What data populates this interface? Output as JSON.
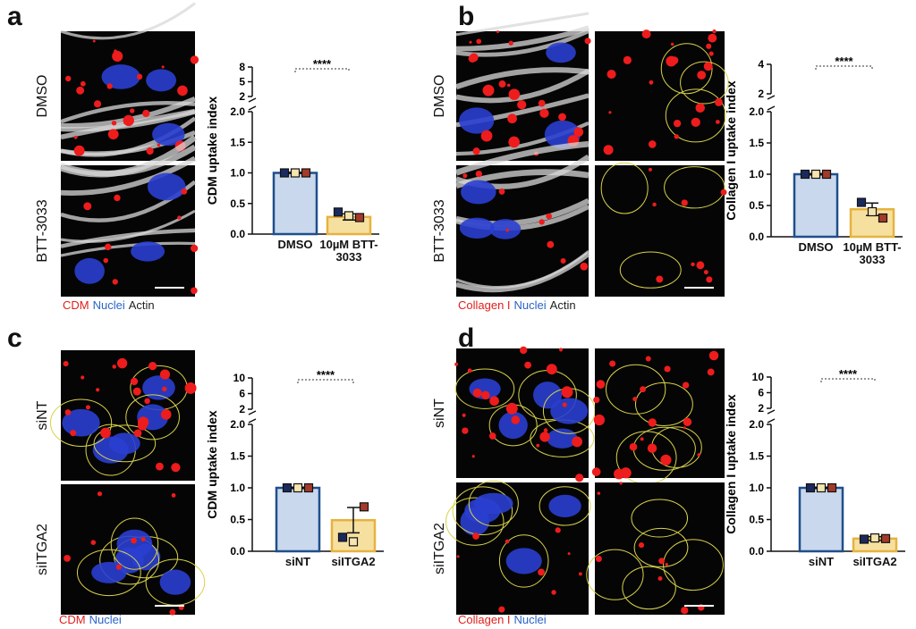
{
  "panels": [
    {
      "letter": "a",
      "rows": [
        "DMSO",
        "BTT-3033"
      ],
      "legend": [
        {
          "text": "CDM",
          "color": "#e0201c"
        },
        {
          "text": "Nuclei",
          "color": "#2a64c8"
        },
        {
          "text": "Actin",
          "color": "#222222"
        }
      ]
    },
    {
      "letter": "b",
      "rows": [
        "DMSO",
        "BTT-3033"
      ],
      "legend": [
        {
          "text": "Collagen I",
          "color": "#e0201c"
        },
        {
          "text": "Nuclei",
          "color": "#2a64c8"
        },
        {
          "text": "Actin",
          "color": "#222222"
        }
      ]
    },
    {
      "letter": "c",
      "rows": [
        "siNT",
        "siITGA2"
      ],
      "legend": [
        {
          "text": "CDM",
          "color": "#e0201c"
        },
        {
          "text": "Nuclei",
          "color": "#2a64c8"
        }
      ]
    },
    {
      "letter": "d",
      "rows": [
        "siNT",
        "siITGA2"
      ],
      "legend": [
        {
          "text": "Collagen I",
          "color": "#e0201c"
        },
        {
          "text": "Nuclei",
          "color": "#2a64c8"
        }
      ]
    }
  ],
  "chart_data": [
    {
      "type": "bar",
      "ylabel": "CDM uptake index",
      "categories": [
        "DMSO",
        "10µM BTT-3033"
      ],
      "values": [
        1.0,
        0.28
      ],
      "errors": [
        0.01,
        0.05
      ],
      "replicates": [
        [
          1.0,
          1.0,
          1.0
        ],
        [
          0.36,
          0.3,
          0.27
        ]
      ],
      "replicate_colors": [
        "#1b2a5e",
        "#f5e6b0",
        "#a33a2a"
      ],
      "colors": [
        "#c9d8ec",
        "#f6e0a0"
      ],
      "edge_colors": [
        "#1f4e8c",
        "#e6b240"
      ],
      "ylim": [
        0,
        2
      ],
      "yticks": [
        {
          "value": 0,
          "label": "0.0"
        },
        {
          "value": 0.5,
          "label": "0.5"
        },
        {
          "value": 1,
          "label": "1.0"
        },
        {
          "value": 1.5,
          "label": "1.5"
        },
        {
          "value": 2,
          "label": "2.0"
        }
      ],
      "upper_ylim": [
        2,
        8
      ],
      "upper_yticks": [
        2,
        5,
        8
      ],
      "significance": "****"
    },
    {
      "type": "bar",
      "ylabel": "Collagen I uptake index",
      "categories": [
        "DMSO",
        "10µM BTT-3033"
      ],
      "values": [
        1.0,
        0.44
      ],
      "errors": [
        0.01,
        0.1
      ],
      "replicates": [
        [
          1.0,
          1.0,
          1.0
        ],
        [
          0.55,
          0.4,
          0.3
        ]
      ],
      "replicate_colors": [
        "#1b2a5e",
        "#f5e6b0",
        "#a33a2a"
      ],
      "colors": [
        "#c9d8ec",
        "#f6e0a0"
      ],
      "edge_colors": [
        "#1f4e8c",
        "#e6b240"
      ],
      "ylim": [
        0,
        2
      ],
      "yticks": [
        {
          "value": 0,
          "label": "0.0"
        },
        {
          "value": 0.5,
          "label": "0.5"
        },
        {
          "value": 1,
          "label": "1.0"
        },
        {
          "value": 1.5,
          "label": "1.5"
        },
        {
          "value": 2,
          "label": "2.0"
        }
      ],
      "upper_ylim": [
        2,
        4
      ],
      "upper_yticks": [
        2,
        4
      ],
      "significance": "****"
    },
    {
      "type": "bar",
      "ylabel": "CDM uptake index",
      "categories": [
        "siNT",
        "siITGA2"
      ],
      "values": [
        1.0,
        0.49
      ],
      "errors": [
        0.01,
        0.2
      ],
      "replicates": [
        [
          1.0,
          1.0,
          1.0
        ],
        [
          0.22,
          0.15,
          0.7
        ]
      ],
      "replicate_colors": [
        "#1b2a5e",
        "#f5e6b0",
        "#a33a2a"
      ],
      "colors": [
        "#c9d8ec",
        "#f6e0a0"
      ],
      "edge_colors": [
        "#1f4e8c",
        "#e6b240"
      ],
      "ylim": [
        0,
        2
      ],
      "yticks": [
        {
          "value": 0,
          "label": "0.0"
        },
        {
          "value": 0.5,
          "label": "0.5"
        },
        {
          "value": 1,
          "label": "1.0"
        },
        {
          "value": 1.5,
          "label": "1.5"
        },
        {
          "value": 2,
          "label": "2.0"
        }
      ],
      "upper_ylim": [
        2,
        10
      ],
      "upper_yticks": [
        2,
        6,
        10
      ],
      "significance": "****"
    },
    {
      "type": "bar",
      "ylabel": "Collagen I uptake index",
      "categories": [
        "siNT",
        "siITGA2"
      ],
      "values": [
        1.0,
        0.2
      ],
      "errors": [
        0.01,
        0.03
      ],
      "replicates": [
        [
          1.0,
          1.0,
          1.0
        ],
        [
          0.19,
          0.21,
          0.2
        ]
      ],
      "replicate_colors": [
        "#1b2a5e",
        "#f5e6b0",
        "#a33a2a"
      ],
      "colors": [
        "#c9d8ec",
        "#f6e0a0"
      ],
      "edge_colors": [
        "#1f4e8c",
        "#e6b240"
      ],
      "ylim": [
        0,
        2
      ],
      "yticks": [
        {
          "value": 0,
          "label": "0.0"
        },
        {
          "value": 0.5,
          "label": "0.5"
        },
        {
          "value": 1,
          "label": "1.0"
        },
        {
          "value": 1.5,
          "label": "1.5"
        },
        {
          "value": 2,
          "label": "2.0"
        }
      ],
      "upper_ylim": [
        2,
        10
      ],
      "upper_yticks": [
        2,
        6,
        10
      ],
      "significance": "****"
    }
  ]
}
